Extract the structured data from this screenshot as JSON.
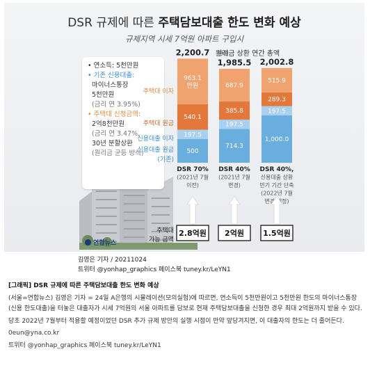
{
  "graphic": {
    "title_light": "DSR 규제에 따른 ",
    "title_bold": "주택담보대출 한도 변화 예상",
    "subtitle": "규제지역 시세 7억원 아파트 구입시",
    "info": {
      "income": "• 연소득: 5천만원",
      "existing_head": "• 기존 신용대출:",
      "existing_1": "마이너스통장",
      "existing_2": "5천만원",
      "existing_3": "(금리 연 3.95%)",
      "mortgage_head": "• 주택대 신청금액:",
      "mortgage_1": "2억8천만원",
      "mortgage_2": "(금리 연 3.47%,",
      "mortgage_3": "30년 분할상환",
      "mortgage_4": "(원리금 균등 방식)"
    },
    "logo": "연합뉴스",
    "loan_label_1": "주택대",
    "loan_label_2": "가능 금액"
  },
  "chart_data": {
    "type": "bar",
    "title": "원리금 상환 연간 총액",
    "unit": "만원",
    "categories": [
      {
        "l1": "DSR 70%",
        "l2": "(2021년 7월",
        "l3": "이전)"
      },
      {
        "l1": "DSR 40%",
        "l2": "(2021년 7월",
        "l3": "변경)"
      },
      {
        "l1": "DSR 40%,",
        "l2": "신용대출 상환",
        "l3": "만기 기간 단축",
        "l4": "(2022년 7월",
        "l5": "변경 예정)"
      }
    ],
    "totals": [
      "2,200.7",
      "1,985.5",
      "2,002.8"
    ],
    "series": [
      {
        "name": "신용대출 원금 (기존)",
        "values": [
          500,
          714.3,
          1000.0
        ],
        "labels": [
          "500",
          "714.3",
          "1,000.0"
        ],
        "color": "#6aaedf"
      },
      {
        "name": "신용대출 이자",
        "values": [
          197.5,
          197.5,
          197.5
        ],
        "labels": [
          "197.5",
          "197.5",
          "197.5"
        ],
        "color": "#a9d0ee"
      },
      {
        "name": "주택대 원금",
        "values": [
          540.1,
          385.8,
          289.3
        ],
        "labels": [
          "540.1",
          "385.8",
          "289.3"
        ],
        "color": "#e3783a"
      },
      {
        "name": "주택대 이자",
        "values": [
          963.1,
          687.9,
          515.9
        ],
        "labels": [
          "963.1\n만원",
          "687.9",
          "515.9"
        ],
        "color": "#f0a36e"
      }
    ],
    "legend_lines": [
      {
        "text": "주택대 이자",
        "color": "#e58a3d"
      },
      {
        "text": "주택대 원금",
        "color": "#c9682e"
      },
      {
        "text": "신용대출 이자",
        "color": "#3a8fd0"
      },
      {
        "text": "신용대출 원금",
        "color": "#3a8fd0"
      },
      {
        "text": "(기존)",
        "color": "#3a8fd0"
      }
    ],
    "available_amount": [
      "2.8억원",
      "2억원",
      "1.5억원"
    ]
  },
  "caption": {
    "line1": "김영은 기자 / 20211024",
    "line2": "트위터 @yonhap_graphics  페이스북 tuney.kr/LeYN1"
  },
  "article": {
    "headline": "[그래픽] DSR 규제에 따른 주택담보대출 한도 변화 예상",
    "para1": "(서울=연합뉴스) 김영은 기자 = 24일 A은행의 시뮬레이션(모의실험)에 따르면, 연소득이 5천만원이고 5천만원 한도의 마이너스통장(신용 한도대출)을 터놓은 대출자가 시세 7억원의 서울 아파트를 담보로 현재 주택담보대출을 신청한 경우 최대 2억원까지 받을 수 있다.",
    "para2": "당초 2022년 7월부터 적용할 예정이었던 DSR 추가 규제 방안의 실행 시점이 만약 앞당겨지면, 이 대출자의 한도는 더 줄어든다.",
    "email": "0eun@yna.co.kr",
    "social": "트위터 @yonhap_graphics  페이스북 tuney.kr/LeYN1"
  },
  "colors": {
    "housing_interest": "#f0a36e",
    "housing_principal": "#e3783a",
    "credit_interest": "#a9d0ee",
    "credit_principal": "#6aaedf",
    "label_blue": "#3a8fd0",
    "label_orange": "#e58a3d"
  },
  "icons": [
    "apartment-buildings-illustration",
    "arrow-up-icon",
    "yonhap-logo-icon"
  ]
}
